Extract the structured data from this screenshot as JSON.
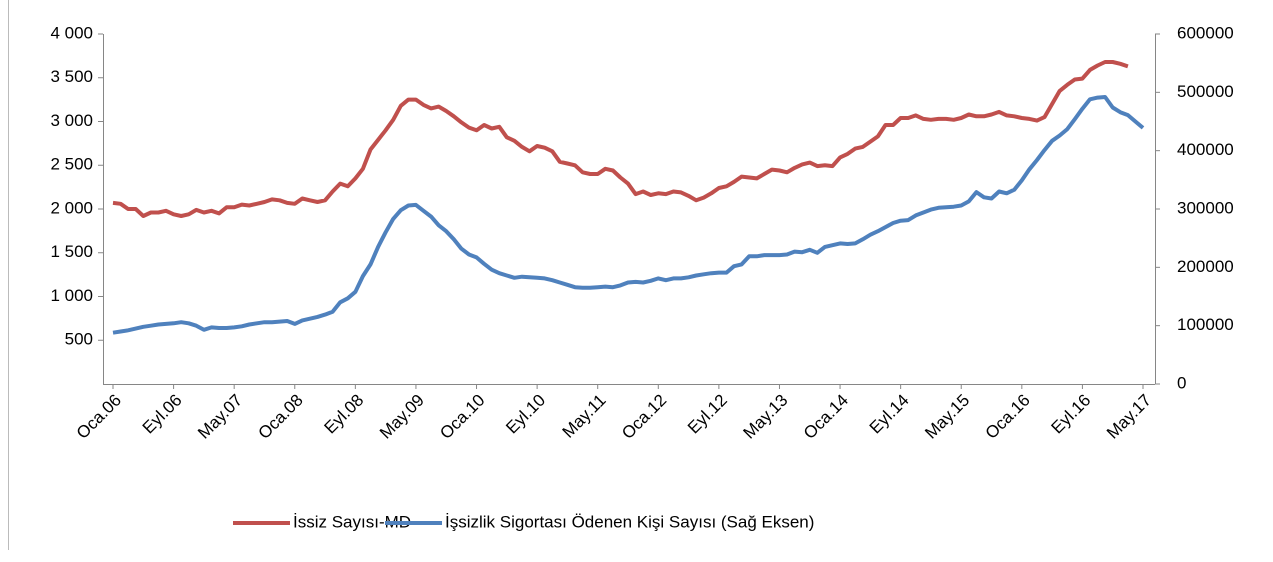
{
  "chart_data": {
    "type": "line",
    "categories": [
      "Oca.06",
      null,
      null,
      null,
      null,
      null,
      null,
      null,
      "Eyl.06",
      null,
      null,
      null,
      null,
      null,
      null,
      null,
      "May.07",
      null,
      null,
      null,
      null,
      null,
      null,
      null,
      "Oca.08",
      null,
      null,
      null,
      null,
      null,
      null,
      null,
      "Eyl.08",
      null,
      null,
      null,
      null,
      null,
      null,
      null,
      "May.09",
      null,
      null,
      null,
      null,
      null,
      null,
      null,
      "Oca.10",
      null,
      null,
      null,
      null,
      null,
      null,
      null,
      "Eyl.10",
      null,
      null,
      null,
      null,
      null,
      null,
      null,
      "May.11",
      null,
      null,
      null,
      null,
      null,
      null,
      null,
      "Oca.12",
      null,
      null,
      null,
      null,
      null,
      null,
      null,
      "Eyl.12",
      null,
      null,
      null,
      null,
      null,
      null,
      null,
      "May.13",
      null,
      null,
      null,
      null,
      null,
      null,
      null,
      "Oca.14",
      null,
      null,
      null,
      null,
      null,
      null,
      null,
      "Eyl.14",
      null,
      null,
      null,
      null,
      null,
      null,
      null,
      "May.15",
      null,
      null,
      null,
      null,
      null,
      null,
      null,
      "Oca.16",
      null,
      null,
      null,
      null,
      null,
      null,
      null,
      "Eyl.16",
      null,
      null,
      null,
      null,
      null,
      null,
      null,
      "May.17"
    ],
    "series": [
      {
        "name": "İssiz Sayısı-MD",
        "color": "#c0504d",
        "values": [
          2070,
          2060,
          2000,
          2000,
          1920,
          1960,
          1960,
          1980,
          1940,
          1920,
          1940,
          1990,
          1960,
          1980,
          1950,
          2020,
          2020,
          2050,
          2040,
          2060,
          2080,
          2110,
          2100,
          2070,
          2060,
          2120,
          2100,
          2080,
          2100,
          2200,
          2290,
          2260,
          2350,
          2460,
          2680,
          2790,
          2900,
          3020,
          3180,
          3250,
          3250,
          3190,
          3150,
          3170,
          3120,
          3060,
          2990,
          2930,
          2900,
          2960,
          2920,
          2940,
          2820,
          2780,
          2710,
          2660,
          2720,
          2700,
          2660,
          2540,
          2520,
          2500,
          2420,
          2400,
          2400,
          2460,
          2440,
          2360,
          2290,
          2170,
          2200,
          2160,
          2180,
          2170,
          2200,
          2190,
          2150,
          2100,
          2130,
          2180,
          2240,
          2260,
          2310,
          2370,
          2360,
          2350,
          2400,
          2450,
          2440,
          2420,
          2470,
          2510,
          2530,
          2490,
          2500,
          2490,
          2590,
          2630,
          2690,
          2710,
          2770,
          2830,
          2960,
          2960,
          3040,
          3040,
          3070,
          3030,
          3020,
          3030,
          3030,
          3020,
          3040,
          3080,
          3060,
          3060,
          3080,
          3110,
          3070,
          3060,
          3040,
          3030,
          3010,
          3050,
          3200,
          3350,
          3420,
          3480,
          3490,
          3590,
          3640,
          3680,
          3680,
          3660,
          3630,
          null,
          null
        ]
      },
      {
        "name": "İşsizlik Sigortası Ödenen Kişi Sayısı (Sağ Eksen)",
        "color": "#4f81bd",
        "axis": "y2",
        "values": [
          88000,
          90000,
          92000,
          95000,
          98000,
          100000,
          102000,
          103000,
          104000,
          106000,
          104000,
          100000,
          93000,
          97000,
          96000,
          96000,
          97000,
          99000,
          102000,
          104000,
          106000,
          106000,
          107000,
          108000,
          103000,
          109000,
          112000,
          115000,
          119000,
          124000,
          140000,
          147000,
          158000,
          185000,
          205000,
          235000,
          260000,
          283000,
          298000,
          306000,
          307000,
          297000,
          287000,
          272000,
          262000,
          248000,
          232000,
          222000,
          217000,
          206000,
          196000,
          190000,
          186000,
          182000,
          184000,
          183000,
          182000,
          181000,
          178000,
          174000,
          170000,
          166000,
          165000,
          165000,
          166000,
          167000,
          166000,
          169000,
          174000,
          175000,
          174000,
          177000,
          181000,
          178000,
          181000,
          181000,
          183000,
          186000,
          188000,
          190000,
          191000,
          191000,
          202000,
          205000,
          219000,
          219000,
          221000,
          221000,
          221000,
          222000,
          227000,
          226000,
          230000,
          225000,
          235000,
          238000,
          241000,
          240000,
          241000,
          248000,
          256000,
          262000,
          269000,
          276000,
          280000,
          281000,
          289000,
          294000,
          299000,
          302000,
          303000,
          304000,
          306000,
          313000,
          329000,
          320000,
          318000,
          330000,
          327000,
          333000,
          349000,
          368000,
          384000,
          401000,
          417000,
          426000,
          437000,
          454000,
          472000,
          488000,
          491000,
          492000,
          474000,
          466000,
          461000,
          450000,
          439000
        ]
      }
    ],
    "ylim": [
      0,
      4000
    ],
    "yticks": [
      500,
      {
        "value": 1000,
        "label": "1 000"
      },
      {
        "value": 1500,
        "label": "1 500"
      },
      {
        "value": 2000,
        "label": "2 000"
      },
      {
        "value": 2500,
        "label": "2 500"
      },
      {
        "value": 3000,
        "label": "3 000"
      },
      {
        "value": 3500,
        "label": "3 500"
      },
      {
        "value": 4000,
        "label": "4 000"
      }
    ],
    "y2lim": [
      0,
      600000
    ],
    "y2ticks": [
      0,
      100000,
      200000,
      300000,
      400000,
      500000,
      600000
    ],
    "grid": false,
    "legend": "bottom"
  }
}
